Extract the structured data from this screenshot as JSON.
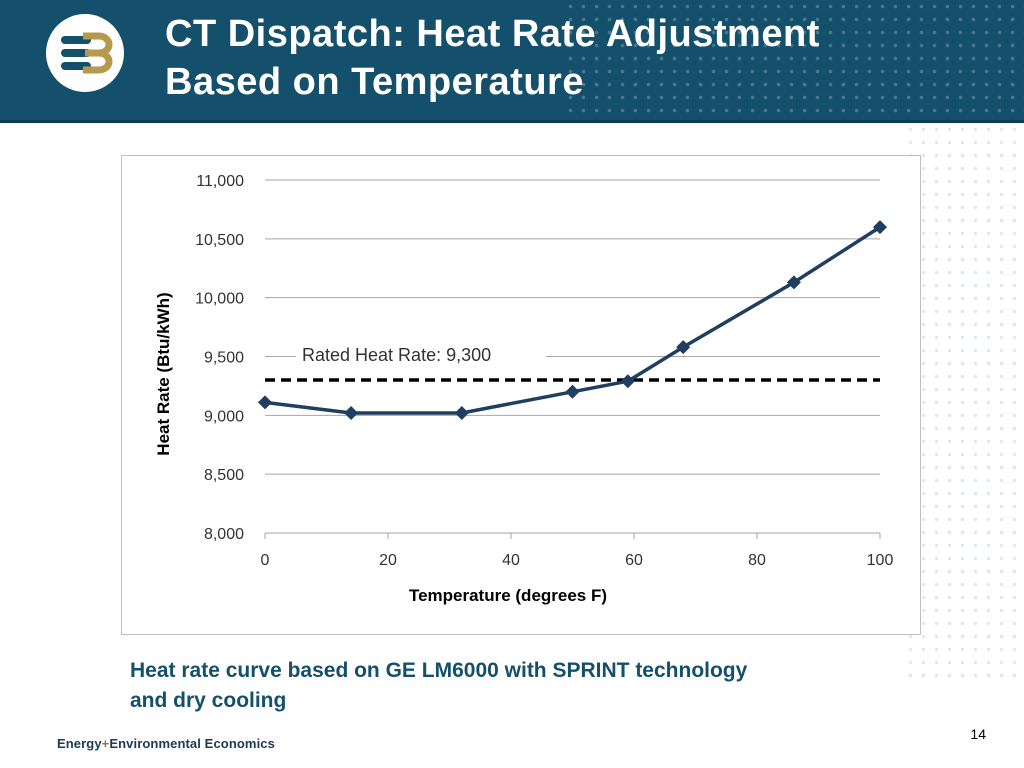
{
  "header": {
    "title_line1": "CT Dispatch: Heat Rate Adjustment",
    "title_line2": "Based on Temperature"
  },
  "colors": {
    "header_bg": "#14506b",
    "series_line": "#1f3e61",
    "caption_text": "#14506b",
    "logo_gold": "#b6994c"
  },
  "logo": {
    "icon": "e3-logo-icon"
  },
  "chart_data": {
    "type": "line",
    "xlabel": "Temperature (degrees F)",
    "ylabel": "Heat Rate (Btu/kWh)",
    "xlim": [
      0,
      100
    ],
    "ylim": [
      8000,
      11000
    ],
    "x_ticks": [
      0,
      20,
      40,
      60,
      80,
      100
    ],
    "y_ticks": [
      8000,
      8500,
      9000,
      9500,
      10000,
      10500,
      11000
    ],
    "y_tick_labels": [
      "8,000",
      "8,500",
      "9,000",
      "9,500",
      "10,000",
      "10,500",
      "11,000"
    ],
    "grid": "horizontal",
    "series": [
      {
        "marker": "diamond",
        "x": [
          0,
          14,
          32,
          50,
          59,
          68,
          86,
          100
        ],
        "y": [
          9110,
          9020,
          9020,
          9200,
          9290,
          9580,
          10130,
          10600
        ]
      }
    ],
    "reference_line": {
      "y": 9300,
      "style": "dashed",
      "label": "Rated Heat Rate: 9,300"
    }
  },
  "caption": {
    "line1": "Heat rate curve based on GE LM6000 with SPRINT technology",
    "line2": "and dry cooling"
  },
  "footer": {
    "company_part1": "Energy",
    "company_plus": "+",
    "company_part2": "Environmental Economics",
    "page_number": "14"
  }
}
